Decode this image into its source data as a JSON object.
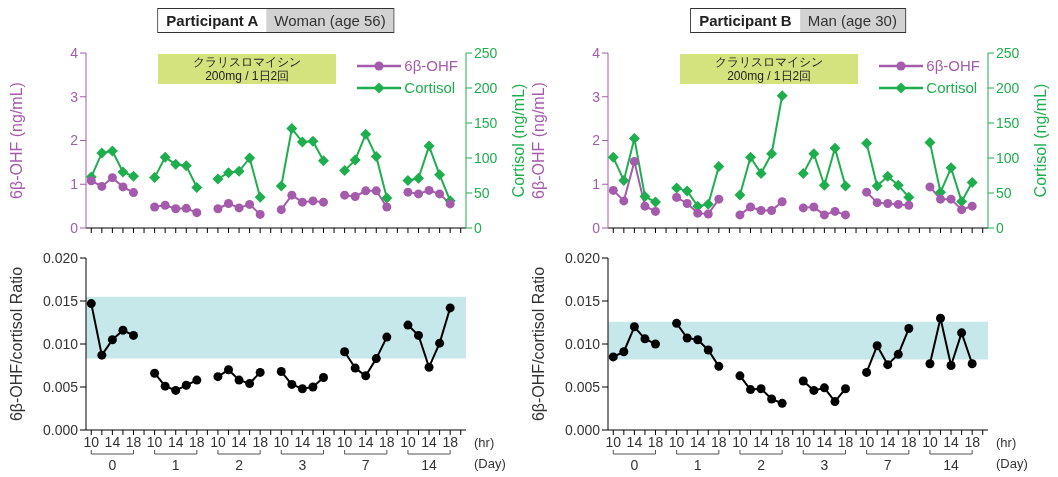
{
  "chart_data": [
    {
      "type": "line",
      "title": "Participant A",
      "subtitle": "Woman (age 56)",
      "ylabel": "6β-OHF (ng/mL)",
      "y2label": "Cortisol (ng/mL)",
      "annotations": [
        "クラリスロマイシン\n200mg / 1日2回"
      ],
      "categories": [
        null,
        null,
        null,
        null,
        null,
        null,
        null,
        null,
        null,
        null,
        null,
        null,
        null,
        null,
        null,
        null,
        null,
        null,
        null,
        null,
        null,
        null,
        null,
        null,
        null,
        null,
        null,
        null,
        null,
        null,
        null,
        null,
        null,
        null,
        null,
        null
      ],
      "series": [
        {
          "name": "6β-OHF",
          "color": "#a55bab",
          "marker": "circle",
          "values": [
            1.08,
            0.95,
            1.15,
            0.94,
            0.81,
            null,
            0.48,
            0.52,
            0.44,
            0.45,
            0.35,
            null,
            0.44,
            0.56,
            0.46,
            0.54,
            0.31,
            null,
            0.42,
            0.75,
            0.59,
            0.62,
            0.59,
            null,
            0.75,
            0.72,
            0.85,
            0.85,
            0.48,
            null,
            0.82,
            0.78,
            0.86,
            0.78,
            0.55,
            null
          ]
        },
        {
          "name": "Cortisol",
          "color": "#1fae4e",
          "marker": "diamond",
          "axis": "y2",
          "values": [
            73,
            107,
            110,
            80,
            74,
            null,
            72,
            101,
            91,
            89,
            58,
            null,
            70,
            79,
            81,
            100,
            44,
            null,
            60,
            142,
            123,
            124,
            96,
            null,
            82,
            97,
            134,
            102,
            43,
            null,
            68,
            71,
            117,
            76,
            39,
            null
          ]
        }
      ],
      "ylim": [
        0,
        4
      ],
      "yticks": [
        0,
        1,
        2,
        3,
        4
      ],
      "y2lim": [
        0,
        250
      ],
      "y2ticks": [
        0,
        50,
        100,
        150,
        200,
        250
      ],
      "tick_labels": "y",
      "legend": "top right"
    },
    {
      "type": "line",
      "title": "Participant B",
      "subtitle": "Man (age 30)",
      "ylabel": "6β-OHF (ng/mL)",
      "y2label": "Cortisol (ng/mL)",
      "annotations": [
        "クラリスロマイシン\n200mg / 1日2回"
      ],
      "categories": [
        null,
        null,
        null,
        null,
        null,
        null,
        null,
        null,
        null,
        null,
        null,
        null,
        null,
        null,
        null,
        null,
        null,
        null,
        null,
        null,
        null,
        null,
        null,
        null,
        null,
        null,
        null,
        null,
        null,
        null,
        null,
        null,
        null,
        null,
        null,
        null
      ],
      "series": [
        {
          "name": "6β-OHF",
          "color": "#a55bab",
          "marker": "circle",
          "values": [
            0.86,
            0.62,
            1.52,
            0.5,
            0.38,
            null,
            0.7,
            0.56,
            0.34,
            0.32,
            0.66,
            null,
            0.3,
            0.48,
            0.4,
            0.4,
            0.6,
            null,
            0.46,
            0.48,
            0.3,
            0.38,
            0.3,
            null,
            0.82,
            0.58,
            0.56,
            0.54,
            0.52,
            null,
            0.94,
            0.66,
            0.66,
            0.42,
            0.5,
            null
          ]
        },
        {
          "name": "Cortisol",
          "color": "#1fae4e",
          "marker": "diamond",
          "axis": "y2",
          "values": [
            101,
            68,
            128,
            45,
            37,
            null,
            57,
            53,
            31,
            34,
            88,
            null,
            47,
            101,
            78,
            106,
            189,
            null,
            78,
            106,
            61,
            114,
            60,
            null,
            121,
            60,
            74,
            61,
            44,
            null,
            122,
            51,
            86,
            38,
            65,
            null
          ]
        }
      ],
      "ylim": [
        0,
        4
      ],
      "yticks": [
        0,
        1,
        2,
        3,
        4
      ],
      "y2lim": [
        0,
        250
      ],
      "y2ticks": [
        0,
        50,
        100,
        150,
        200,
        250
      ],
      "tick_labels": "y",
      "legend": "top right"
    },
    {
      "type": "line",
      "ylabel": "6β-OHF/cortisol Ratio",
      "xlabel": "(Day)",
      "annotations": [
        "(hr)",
        "0",
        "1",
        "2",
        "3",
        "7",
        "14"
      ],
      "categories": [
        "10",
        null,
        "14",
        null,
        "18",
        null,
        "10",
        null,
        "14",
        null,
        "18",
        null,
        "10",
        null,
        "14",
        null,
        "18",
        null,
        "10",
        null,
        "14",
        null,
        "18",
        null,
        "10",
        null,
        "14",
        null,
        "18",
        null,
        "10",
        null,
        "14",
        null,
        "18",
        null
      ],
      "series": [
        {
          "color": "#000000",
          "marker": "circle",
          "values": [
            0.0147,
            0.0087,
            0.0105,
            0.0116,
            0.011,
            null,
            0.0066,
            0.0051,
            0.0046,
            0.0052,
            0.0058,
            null,
            0.0062,
            0.007,
            0.0058,
            0.0054,
            0.0067,
            null,
            0.0068,
            0.0053,
            0.0048,
            0.005,
            0.0061,
            null,
            0.0091,
            0.0072,
            0.0063,
            0.0083,
            0.0108,
            null,
            0.0122,
            0.011,
            0.0073,
            0.0101,
            0.0142,
            null
          ]
        }
      ],
      "ylim": [
        0,
        0.02
      ],
      "yticks": [
        {
          "value": 0,
          "label": "0.000"
        },
        {
          "value": 0.005,
          "label": "0.005"
        },
        {
          "value": 0.01,
          "label": "0.010"
        },
        {
          "value": 0.015,
          "label": "0.015"
        },
        {
          "value": 0.02,
          "label": "0.020"
        }
      ],
      "bands": [
        {
          "axis": "y",
          "from": 0.0083,
          "to": 0.0155,
          "color": "#c7e8eb"
        }
      ]
    },
    {
      "type": "line",
      "ylabel": "6β-OHF/cortisol Ratio",
      "xlabel": "(Day)",
      "annotations": [
        "(hr)",
        "0",
        "1",
        "2",
        "3",
        "7",
        "14"
      ],
      "categories": [
        "10",
        null,
        "14",
        null,
        "18",
        null,
        "10",
        null,
        "14",
        null,
        "18",
        null,
        "10",
        null,
        "14",
        null,
        "18",
        null,
        "10",
        null,
        "14",
        null,
        "18",
        null,
        "10",
        null,
        "14",
        null,
        "18",
        null,
        "10",
        null,
        "14",
        null,
        "18",
        null
      ],
      "series": [
        {
          "color": "#000000",
          "marker": "circle",
          "values": [
            0.0085,
            0.0091,
            0.012,
            0.0106,
            0.01,
            null,
            0.0124,
            0.0107,
            0.0105,
            0.0093,
            0.0074,
            null,
            0.0063,
            0.0047,
            0.0048,
            0.0036,
            0.0031,
            null,
            0.0057,
            0.0046,
            0.0049,
            0.0033,
            0.0048,
            null,
            0.0067,
            0.0098,
            0.0076,
            0.0088,
            0.0118,
            null,
            0.0077,
            0.013,
            0.0075,
            0.0113,
            0.0077,
            null
          ]
        }
      ],
      "ylim": [
        0,
        0.02
      ],
      "yticks": [
        {
          "value": 0,
          "label": "0.000"
        },
        {
          "value": 0.005,
          "label": "0.005"
        },
        {
          "value": 0.01,
          "label": "0.010"
        },
        {
          "value": 0.015,
          "label": "0.015"
        },
        {
          "value": 0.02,
          "label": "0.020"
        }
      ],
      "bands": [
        {
          "axis": "y",
          "from": 0.0082,
          "to": 0.0126,
          "color": "#c7e8eb"
        }
      ]
    }
  ]
}
